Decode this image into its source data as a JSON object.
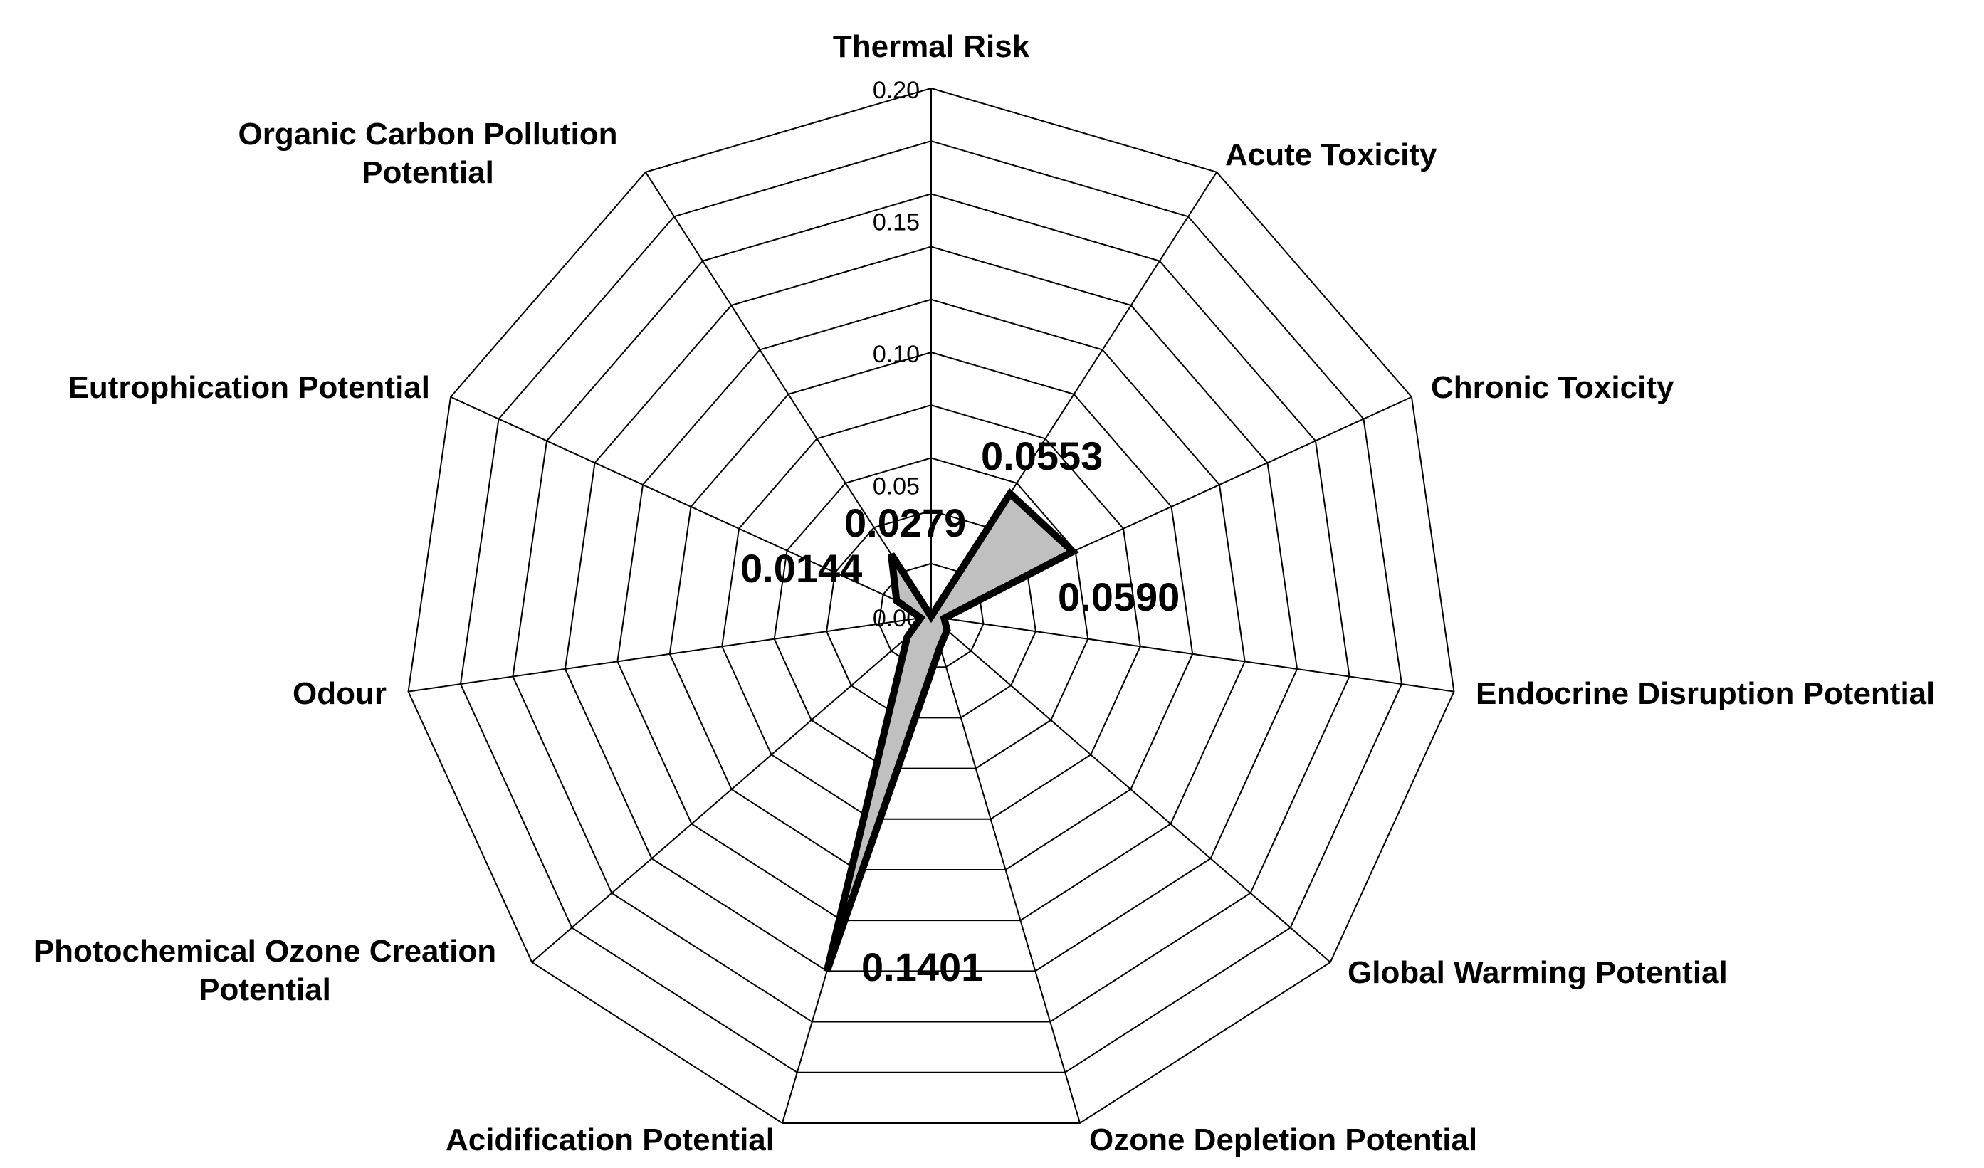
{
  "chart_data": {
    "type": "radar",
    "categories": [
      "Thermal Risk",
      "Acute Toxicity",
      "Chronic Toxicity",
      "Endocrine Disruption Potential",
      "Global Warming Potential",
      "Ozone Depletion Potential",
      "Acidification Potential",
      "Photochemical Ozone Creation Potential",
      "Odour",
      "Eutrophication Potential",
      "Organic Carbon Pollution Potential"
    ],
    "series": [
      {
        "name": "",
        "values": [
          0.0,
          0.0553,
          0.059,
          0.005,
          0.008,
          0.012,
          0.1401,
          0.012,
          0.004,
          0.0144,
          0.0279
        ]
      }
    ],
    "r_range": [
      0,
      0.2
    ],
    "r_ticks": [
      "0.00",
      "0.05",
      "0.10",
      "0.15",
      "0.20"
    ],
    "data_labels": [
      {
        "category": "Acute Toxicity",
        "text": "0.0553"
      },
      {
        "category": "Chronic Toxicity",
        "text": "0.0590"
      },
      {
        "category": "Acidification Potential",
        "text": "0.1401"
      },
      {
        "category": "Eutrophication Potential",
        "text": "0.0144"
      },
      {
        "category": "Organic Carbon Pollution Potential",
        "text": "0.0279"
      }
    ],
    "colors": {
      "fill": "#c0c0c0",
      "line": "#000000",
      "grid": "#000000"
    },
    "title": "",
    "legend": "none"
  }
}
